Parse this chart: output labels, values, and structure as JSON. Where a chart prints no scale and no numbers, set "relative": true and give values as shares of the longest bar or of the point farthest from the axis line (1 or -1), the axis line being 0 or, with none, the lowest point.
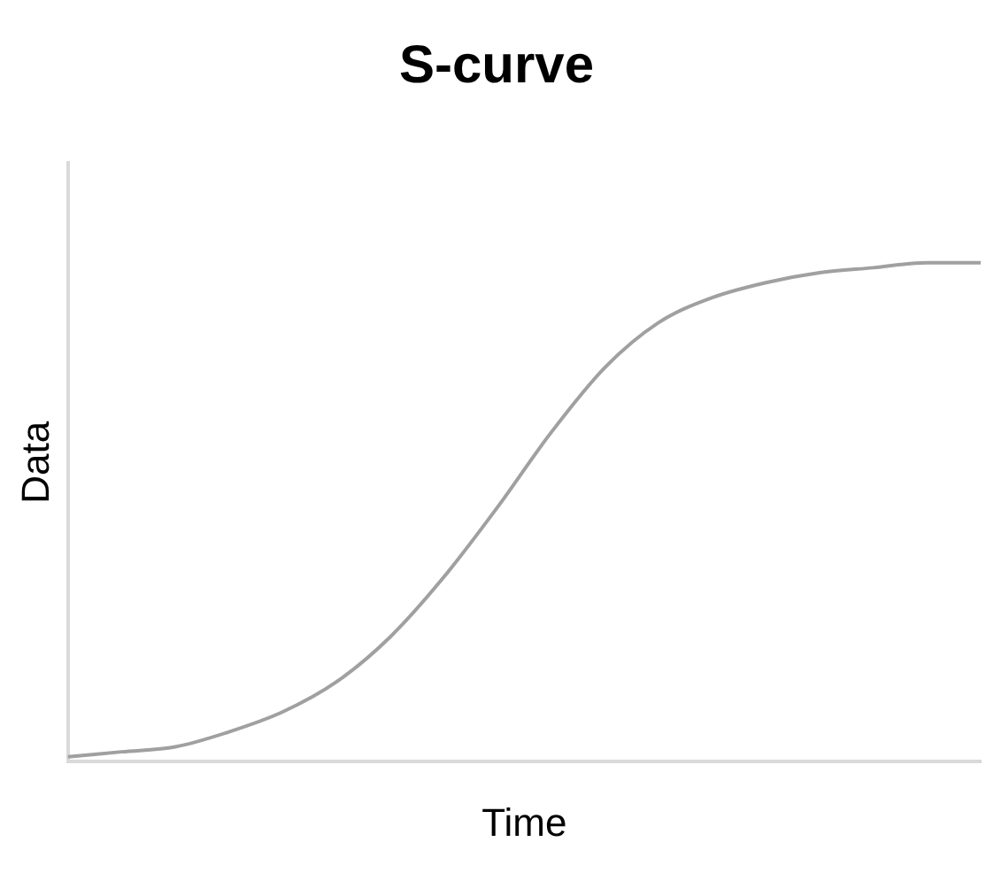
{
  "chart_data": {
    "type": "line",
    "title": "S-curve",
    "xlabel": "Time",
    "ylabel": "Data",
    "relative": true,
    "marker": "none",
    "grid": false,
    "legend": false,
    "categories": [
      null,
      null,
      null,
      null,
      null,
      null,
      null,
      null,
      null,
      null,
      null,
      null,
      null,
      null,
      null,
      null,
      null,
      null
    ],
    "series": [
      {
        "color": "#a0a0a0",
        "values": [
          0.01,
          0.02,
          0.03,
          0.06,
          0.1,
          0.16,
          0.25,
          0.37,
          0.51,
          0.66,
          0.79,
          0.88,
          0.93,
          0.96,
          0.98,
          0.99,
          1.0,
          1.0
        ]
      }
    ]
  }
}
